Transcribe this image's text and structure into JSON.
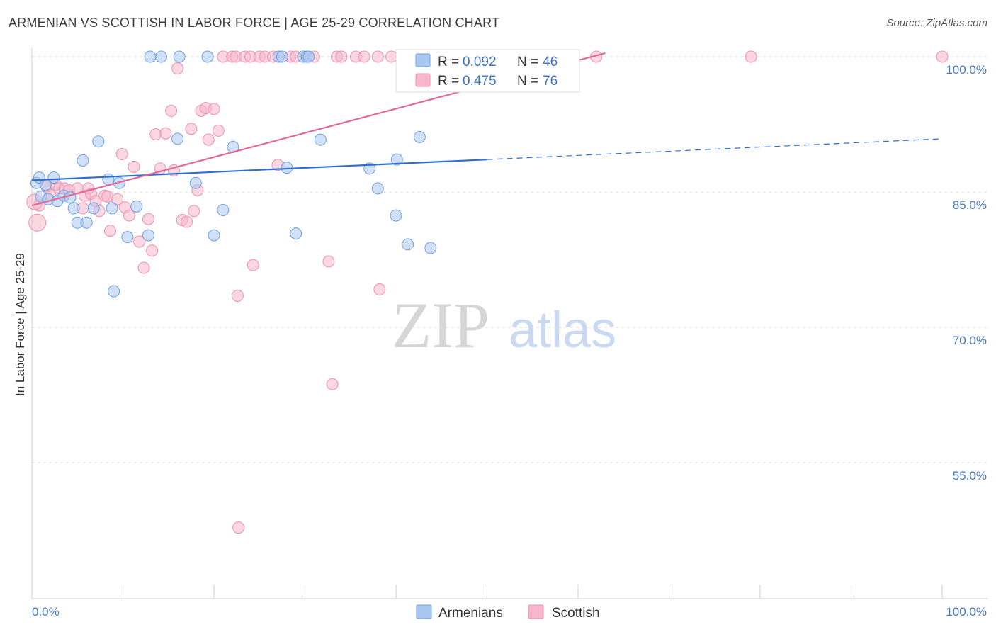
{
  "title": "ARMENIAN VS SCOTTISH IN LABOR FORCE | AGE 25-29 CORRELATION CHART",
  "source": "Source: ZipAtlas.com",
  "watermark": {
    "zip": "ZIP",
    "atlas": "atlas"
  },
  "colors": {
    "armenian_fill": "#a9c6ef",
    "armenian_stroke": "#6f9fe0",
    "armenian_line": "#2f6fd0",
    "scottish_fill": "#f7b7cb",
    "scottish_stroke": "#ee8fb0",
    "scottish_line": "#e0699a",
    "axis_label": "#4a78c2",
    "grid": "#dddddd"
  },
  "legend": {
    "rows": [
      {
        "r_label": "R =",
        "r_value": "0.092",
        "n_label": "N =",
        "n_value": "46"
      },
      {
        "r_label": "R =",
        "r_value": "0.475",
        "n_label": "N =",
        "n_value": "76"
      }
    ]
  },
  "bottom_legend": {
    "armenians": "Armenians",
    "scottish": "Scottish"
  },
  "chart_data": {
    "type": "scatter",
    "title": "ARMENIAN VS SCOTTISH IN LABOR FORCE | AGE 25-29 CORRELATION CHART",
    "xlabel": "",
    "ylabel": "In Labor Force | Age 25-29",
    "xlim": [
      0,
      100
    ],
    "ylim": [
      40,
      101.5
    ],
    "x_tick_labels": [
      "0.0%",
      "100.0%"
    ],
    "y_ticks": [
      55,
      70,
      85,
      100
    ],
    "y_tick_labels": [
      "55.0%",
      "70.0%",
      "85.0%",
      "100.0%"
    ],
    "grid": true,
    "legend_placement": "top-center",
    "series": [
      {
        "name": "Armenians",
        "r": 0.092,
        "n": 46,
        "trend": {
          "x0": 0,
          "y0": 86.3,
          "x1": 50,
          "y1": 88.6,
          "dash_to_x": 100,
          "dash_to_y": 90.9
        },
        "points": [
          [
            0.5,
            86.0
          ],
          [
            0.8,
            86.6
          ],
          [
            1.0,
            84.5
          ],
          [
            1.5,
            85.8
          ],
          [
            1.8,
            84.2
          ],
          [
            2.4,
            86.6
          ],
          [
            2.8,
            84.0
          ],
          [
            3.5,
            84.6
          ],
          [
            4.2,
            84.4
          ],
          [
            4.6,
            83.2
          ],
          [
            5.0,
            81.6
          ],
          [
            5.6,
            88.5
          ],
          [
            6.0,
            81.6
          ],
          [
            6.8,
            83.2
          ],
          [
            7.3,
            90.6
          ],
          [
            8.4,
            86.4
          ],
          [
            8.8,
            83.2
          ],
          [
            9.0,
            74.0
          ],
          [
            9.6,
            86.0
          ],
          [
            10.5,
            80.0
          ],
          [
            11.5,
            83.4
          ],
          [
            12.8,
            80.2
          ],
          [
            13.0,
            100.0
          ],
          [
            14.2,
            100.0
          ],
          [
            16.0,
            90.9
          ],
          [
            16.2,
            100.0
          ],
          [
            18.0,
            86.0
          ],
          [
            19.3,
            100.0
          ],
          [
            20.0,
            80.2
          ],
          [
            21.0,
            83.0
          ],
          [
            22.1,
            90.0
          ],
          [
            27.1,
            100.0
          ],
          [
            27.5,
            100.0
          ],
          [
            28.0,
            87.7
          ],
          [
            29.0,
            80.4
          ],
          [
            29.8,
            100.0
          ],
          [
            30.2,
            100.0
          ],
          [
            30.4,
            100.0
          ],
          [
            31.7,
            90.8
          ],
          [
            37.1,
            87.6
          ],
          [
            38.0,
            85.4
          ],
          [
            40.0,
            82.4
          ],
          [
            40.1,
            88.6
          ],
          [
            41.3,
            79.2
          ],
          [
            42.6,
            91.1
          ],
          [
            43.8,
            78.8
          ]
        ]
      },
      {
        "name": "Scottish",
        "r": 0.475,
        "n": 76,
        "trend": {
          "x0": 0,
          "y0": 83.5,
          "x1": 63,
          "y1": 100.4
        },
        "points": [
          [
            0.6,
            81.6
          ],
          [
            0.8,
            83.5
          ],
          [
            1.6,
            85.6
          ],
          [
            2.0,
            84.7
          ],
          [
            2.6,
            85.8
          ],
          [
            3.0,
            85.4
          ],
          [
            3.6,
            85.4
          ],
          [
            4.1,
            85.2
          ],
          [
            5.0,
            85.4
          ],
          [
            5.6,
            83.2
          ],
          [
            5.8,
            84.6
          ],
          [
            6.2,
            85.4
          ],
          [
            6.5,
            84.8
          ],
          [
            7.0,
            84.0
          ],
          [
            7.4,
            82.9
          ],
          [
            8.0,
            84.6
          ],
          [
            8.3,
            84.5
          ],
          [
            8.6,
            80.7
          ],
          [
            9.4,
            84.2
          ],
          [
            9.9,
            89.2
          ],
          [
            10.2,
            83.3
          ],
          [
            10.7,
            82.4
          ],
          [
            11.2,
            87.8
          ],
          [
            11.8,
            79.5
          ],
          [
            12.3,
            76.6
          ],
          [
            12.8,
            82.0
          ],
          [
            13.2,
            78.5
          ],
          [
            13.6,
            91.4
          ],
          [
            14.1,
            87.6
          ],
          [
            14.7,
            91.5
          ],
          [
            15.3,
            94.0
          ],
          [
            15.6,
            87.4
          ],
          [
            16.0,
            98.7
          ],
          [
            16.5,
            81.9
          ],
          [
            17.0,
            81.7
          ],
          [
            17.5,
            92.0
          ],
          [
            17.8,
            82.9
          ],
          [
            18.2,
            85.2
          ],
          [
            18.6,
            94.0
          ],
          [
            19.1,
            94.3
          ],
          [
            19.4,
            90.8
          ],
          [
            20.0,
            94.2
          ],
          [
            20.5,
            91.8
          ],
          [
            21.0,
            100.0
          ],
          [
            22.0,
            100.0
          ],
          [
            22.4,
            100.0
          ],
          [
            22.6,
            73.5
          ],
          [
            23.4,
            100.0
          ],
          [
            24.0,
            100.0
          ],
          [
            24.3,
            76.9
          ],
          [
            25.0,
            100.0
          ],
          [
            25.6,
            100.0
          ],
          [
            26.5,
            100.0
          ],
          [
            27.0,
            88.0
          ],
          [
            28.4,
            100.0
          ],
          [
            29.0,
            100.0
          ],
          [
            31.0,
            100.0
          ],
          [
            32.6,
            77.3
          ],
          [
            33.0,
            63.7
          ],
          [
            33.5,
            100.0
          ],
          [
            34.0,
            100.0
          ],
          [
            35.6,
            100.0
          ],
          [
            36.5,
            100.0
          ],
          [
            38.0,
            100.0
          ],
          [
            38.2,
            74.2
          ],
          [
            39.5,
            100.0
          ],
          [
            40.6,
            100.0
          ],
          [
            45.0,
            100.0
          ],
          [
            49.5,
            100.0
          ],
          [
            52.5,
            100.0
          ],
          [
            57.0,
            100.0
          ],
          [
            62.0,
            100.0
          ],
          [
            22.7,
            47.8
          ],
          [
            79.0,
            100.0
          ],
          [
            100.0,
            100.0
          ],
          [
            0.3,
            83.9
          ]
        ]
      }
    ]
  }
}
